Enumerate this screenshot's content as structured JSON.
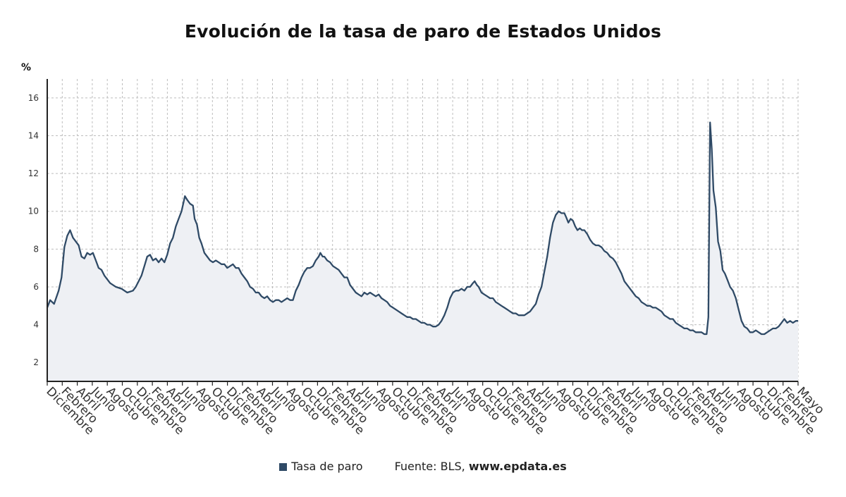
{
  "chart_data": {
    "type": "area",
    "title": "Evolución de la tasa de paro de Estados Unidos",
    "ylabel": "%",
    "xlabel": "",
    "ylim": [
      1,
      17
    ],
    "yticks": [
      2,
      4,
      6,
      8,
      10,
      12,
      14,
      16
    ],
    "grid": true,
    "legend_position": "bottom",
    "x_labels": [
      "Diciembre",
      "Febrero",
      "Abril",
      "Junio",
      "Agosto",
      "Octubre",
      "Diciembre",
      "Febrero",
      "Abril",
      "Junio",
      "Agosto",
      "Octubre",
      "Diciembre",
      "Febrero",
      "Abril",
      "Junio",
      "Agosto",
      "Octubre",
      "Diciembre",
      "Febrero",
      "Abril",
      "Junio",
      "Agosto",
      "Octubre",
      "Diciembre",
      "Febrero",
      "Abril",
      "Junio",
      "Agosto",
      "Octubre",
      "Diciembre",
      "Febrero",
      "Abril",
      "Junio",
      "Agosto",
      "Octubre",
      "Diciembre",
      "Febrero",
      "Abril",
      "Junio",
      "Agosto",
      "Octubre",
      "Diciembre",
      "Febrero",
      "Abril",
      "Junio",
      "Agosto",
      "Octubre",
      "Diciembre",
      "Febrero",
      "Mayo"
    ],
    "series": [
      {
        "name": "Tasa de paro",
        "color": "#2f4a66",
        "points": [
          [
            0,
            4.9
          ],
          [
            5,
            5.3
          ],
          [
            12,
            5.1
          ],
          [
            20,
            5.8
          ],
          [
            25,
            6.5
          ],
          [
            30,
            8.1
          ],
          [
            35,
            8.7
          ],
          [
            40,
            9.0
          ],
          [
            45,
            8.6
          ],
          [
            50,
            8.4
          ],
          [
            55,
            8.2
          ],
          [
            60,
            7.6
          ],
          [
            65,
            7.5
          ],
          [
            70,
            7.8
          ],
          [
            75,
            7.7
          ],
          [
            80,
            7.8
          ],
          [
            85,
            7.4
          ],
          [
            90,
            7.0
          ],
          [
            95,
            6.9
          ],
          [
            100,
            6.6
          ],
          [
            110,
            6.2
          ],
          [
            120,
            6.0
          ],
          [
            130,
            5.9
          ],
          [
            140,
            5.7
          ],
          [
            150,
            5.8
          ],
          [
            155,
            6.0
          ],
          [
            160,
            6.3
          ],
          [
            165,
            6.6
          ],
          [
            170,
            7.1
          ],
          [
            175,
            7.6
          ],
          [
            180,
            7.7
          ],
          [
            185,
            7.4
          ],
          [
            190,
            7.5
          ],
          [
            195,
            7.3
          ],
          [
            200,
            7.5
          ],
          [
            205,
            7.3
          ],
          [
            210,
            7.7
          ],
          [
            215,
            8.3
          ],
          [
            220,
            8.6
          ],
          [
            225,
            9.2
          ],
          [
            230,
            9.6
          ],
          [
            235,
            10.0
          ],
          [
            238,
            10.4
          ],
          [
            241,
            10.8
          ],
          [
            245,
            10.6
          ],
          [
            250,
            10.4
          ],
          [
            255,
            10.3
          ],
          [
            258,
            9.6
          ],
          [
            262,
            9.3
          ],
          [
            266,
            8.6
          ],
          [
            270,
            8.3
          ],
          [
            275,
            7.8
          ],
          [
            280,
            7.6
          ],
          [
            285,
            7.4
          ],
          [
            290,
            7.3
          ],
          [
            295,
            7.4
          ],
          [
            300,
            7.3
          ],
          [
            305,
            7.2
          ],
          [
            310,
            7.2
          ],
          [
            315,
            7.0
          ],
          [
            320,
            7.1
          ],
          [
            325,
            7.2
          ],
          [
            330,
            7.0
          ],
          [
            335,
            7.0
          ],
          [
            340,
            6.7
          ],
          [
            345,
            6.5
          ],
          [
            350,
            6.3
          ],
          [
            355,
            6.0
          ],
          [
            360,
            5.9
          ],
          [
            365,
            5.7
          ],
          [
            370,
            5.7
          ],
          [
            375,
            5.5
          ],
          [
            380,
            5.4
          ],
          [
            385,
            5.5
          ],
          [
            390,
            5.3
          ],
          [
            395,
            5.2
          ],
          [
            400,
            5.3
          ],
          [
            405,
            5.3
          ],
          [
            410,
            5.2
          ],
          [
            415,
            5.3
          ],
          [
            420,
            5.4
          ],
          [
            425,
            5.3
          ],
          [
            430,
            5.3
          ],
          [
            435,
            5.8
          ],
          [
            440,
            6.1
          ],
          [
            445,
            6.5
          ],
          [
            450,
            6.8
          ],
          [
            455,
            7.0
          ],
          [
            460,
            7.0
          ],
          [
            465,
            7.1
          ],
          [
            470,
            7.4
          ],
          [
            475,
            7.6
          ],
          [
            478,
            7.8
          ],
          [
            482,
            7.6
          ],
          [
            485,
            7.6
          ],
          [
            490,
            7.4
          ],
          [
            495,
            7.3
          ],
          [
            500,
            7.1
          ],
          [
            505,
            7.0
          ],
          [
            510,
            6.9
          ],
          [
            515,
            6.7
          ],
          [
            520,
            6.5
          ],
          [
            525,
            6.5
          ],
          [
            530,
            6.1
          ],
          [
            535,
            5.9
          ],
          [
            540,
            5.7
          ],
          [
            545,
            5.6
          ],
          [
            550,
            5.5
          ],
          [
            555,
            5.7
          ],
          [
            560,
            5.6
          ],
          [
            565,
            5.7
          ],
          [
            570,
            5.6
          ],
          [
            575,
            5.5
          ],
          [
            580,
            5.6
          ],
          [
            585,
            5.4
          ],
          [
            590,
            5.3
          ],
          [
            595,
            5.2
          ],
          [
            600,
            5.0
          ],
          [
            605,
            4.9
          ],
          [
            610,
            4.8
          ],
          [
            615,
            4.7
          ],
          [
            620,
            4.6
          ],
          [
            625,
            4.5
          ],
          [
            630,
            4.4
          ],
          [
            635,
            4.4
          ],
          [
            640,
            4.3
          ],
          [
            645,
            4.3
          ],
          [
            650,
            4.2
          ],
          [
            655,
            4.1
          ],
          [
            660,
            4.1
          ],
          [
            665,
            4.0
          ],
          [
            670,
            4.0
          ],
          [
            675,
            3.9
          ],
          [
            680,
            3.9
          ],
          [
            685,
            4.0
          ],
          [
            690,
            4.2
          ],
          [
            695,
            4.5
          ],
          [
            700,
            4.9
          ],
          [
            705,
            5.4
          ],
          [
            710,
            5.7
          ],
          [
            715,
            5.8
          ],
          [
            720,
            5.8
          ],
          [
            725,
            5.9
          ],
          [
            730,
            5.8
          ],
          [
            735,
            6.0
          ],
          [
            740,
            6.0
          ],
          [
            745,
            6.2
          ],
          [
            748,
            6.3
          ],
          [
            752,
            6.1
          ],
          [
            755,
            6.0
          ],
          [
            760,
            5.7
          ],
          [
            765,
            5.6
          ],
          [
            770,
            5.5
          ],
          [
            775,
            5.4
          ],
          [
            780,
            5.4
          ],
          [
            785,
            5.2
          ],
          [
            790,
            5.1
          ],
          [
            795,
            5.0
          ],
          [
            800,
            4.9
          ],
          [
            805,
            4.8
          ],
          [
            810,
            4.7
          ],
          [
            815,
            4.6
          ],
          [
            820,
            4.6
          ],
          [
            825,
            4.5
          ],
          [
            830,
            4.5
          ],
          [
            835,
            4.5
          ],
          [
            840,
            4.6
          ],
          [
            845,
            4.7
          ],
          [
            850,
            4.9
          ],
          [
            855,
            5.1
          ],
          [
            860,
            5.6
          ],
          [
            865,
            6.0
          ],
          [
            870,
            6.8
          ],
          [
            875,
            7.6
          ],
          [
            880,
            8.6
          ],
          [
            885,
            9.4
          ],
          [
            890,
            9.8
          ],
          [
            895,
            10.0
          ],
          [
            900,
            9.9
          ],
          [
            905,
            9.9
          ],
          [
            908,
            9.7
          ],
          [
            912,
            9.4
          ],
          [
            916,
            9.6
          ],
          [
            920,
            9.5
          ],
          [
            924,
            9.2
          ],
          [
            928,
            9.0
          ],
          [
            932,
            9.1
          ],
          [
            936,
            9.0
          ],
          [
            940,
            9.0
          ],
          [
            945,
            8.8
          ],
          [
            950,
            8.5
          ],
          [
            955,
            8.3
          ],
          [
            960,
            8.2
          ],
          [
            965,
            8.2
          ],
          [
            970,
            8.1
          ],
          [
            975,
            7.9
          ],
          [
            980,
            7.8
          ],
          [
            985,
            7.6
          ],
          [
            990,
            7.5
          ],
          [
            995,
            7.3
          ],
          [
            1000,
            7.0
          ],
          [
            1005,
            6.7
          ],
          [
            1010,
            6.3
          ],
          [
            1015,
            6.1
          ],
          [
            1020,
            5.9
          ],
          [
            1025,
            5.7
          ],
          [
            1030,
            5.5
          ],
          [
            1035,
            5.4
          ],
          [
            1040,
            5.2
          ],
          [
            1045,
            5.1
          ],
          [
            1050,
            5.0
          ],
          [
            1055,
            5.0
          ],
          [
            1060,
            4.9
          ],
          [
            1065,
            4.9
          ],
          [
            1070,
            4.8
          ],
          [
            1075,
            4.7
          ],
          [
            1080,
            4.5
          ],
          [
            1085,
            4.4
          ],
          [
            1090,
            4.3
          ],
          [
            1095,
            4.3
          ],
          [
            1100,
            4.1
          ],
          [
            1105,
            4.0
          ],
          [
            1110,
            3.9
          ],
          [
            1115,
            3.8
          ],
          [
            1120,
            3.8
          ],
          [
            1125,
            3.7
          ],
          [
            1130,
            3.7
          ],
          [
            1135,
            3.6
          ],
          [
            1140,
            3.6
          ],
          [
            1145,
            3.6
          ],
          [
            1150,
            3.5
          ],
          [
            1154,
            3.5
          ],
          [
            1157,
            4.4
          ],
          [
            1160,
            14.7
          ],
          [
            1163,
            13.3
          ],
          [
            1166,
            11.1
          ],
          [
            1170,
            10.2
          ],
          [
            1174,
            8.4
          ],
          [
            1178,
            7.9
          ],
          [
            1182,
            6.9
          ],
          [
            1186,
            6.7
          ],
          [
            1190,
            6.4
          ],
          [
            1195,
            6.0
          ],
          [
            1200,
            5.8
          ],
          [
            1205,
            5.4
          ],
          [
            1210,
            4.8
          ],
          [
            1215,
            4.2
          ],
          [
            1220,
            3.9
          ],
          [
            1225,
            3.8
          ],
          [
            1230,
            3.6
          ],
          [
            1235,
            3.6
          ],
          [
            1240,
            3.7
          ],
          [
            1245,
            3.6
          ],
          [
            1250,
            3.5
          ],
          [
            1255,
            3.5
          ],
          [
            1260,
            3.6
          ],
          [
            1265,
            3.7
          ],
          [
            1270,
            3.8
          ],
          [
            1275,
            3.8
          ],
          [
            1280,
            3.9
          ],
          [
            1285,
            4.1
          ],
          [
            1290,
            4.3
          ],
          [
            1295,
            4.1
          ],
          [
            1300,
            4.2
          ],
          [
            1305,
            4.1
          ],
          [
            1310,
            4.2
          ],
          [
            1314,
            4.2
          ]
        ]
      }
    ]
  },
  "legend": {
    "series_label": "Tasa de paro",
    "source_prefix": "Fuente: BLS,",
    "source_site": "www.epdata.es"
  }
}
